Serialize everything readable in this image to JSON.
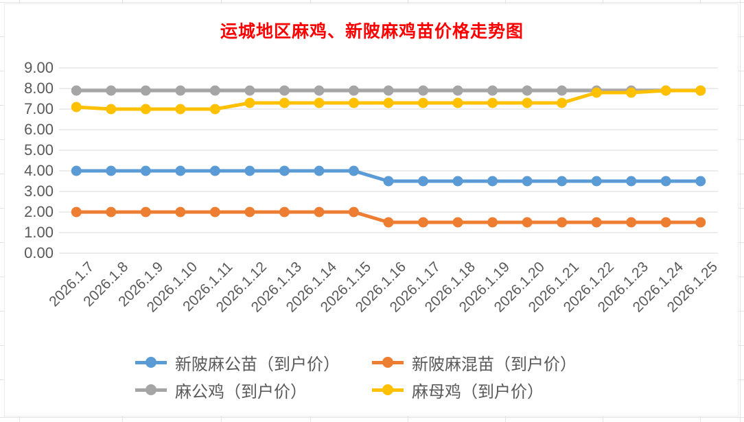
{
  "chart_data": {
    "type": "line",
    "title": "运城地区麻鸡、新陂麻鸡苗价格走势图",
    "title_color": "#ff0000",
    "xlabel": "",
    "ylabel": "",
    "ylim": [
      0,
      9
    ],
    "y_tick_step": 1,
    "y_tick_labels": [
      "0.00",
      "1.00",
      "2.00",
      "3.00",
      "4.00",
      "5.00",
      "6.00",
      "7.00",
      "8.00",
      "9.00"
    ],
    "grid": true,
    "legend_position": "bottom",
    "categories": [
      "2026.1.7",
      "2026.1.8",
      "2026.1.9",
      "2026.1.10",
      "2026.1.11",
      "2026.1.12",
      "2026.1.13",
      "2026.1.14",
      "2026.1.15",
      "2026.1.16",
      "2026.1.17",
      "2026.1.18",
      "2026.1.19",
      "2026.1.20",
      "2026.1.21",
      "2026.1.22",
      "2026.1.23",
      "2026.1.24",
      "2026.1.25"
    ],
    "series": [
      {
        "name": "新陂麻公苗（到户价）",
        "color": "#5B9BD5",
        "values": [
          4.0,
          4.0,
          4.0,
          4.0,
          4.0,
          4.0,
          4.0,
          4.0,
          4.0,
          3.5,
          3.5,
          3.5,
          3.5,
          3.5,
          3.5,
          3.5,
          3.5,
          3.5,
          3.5
        ]
      },
      {
        "name": "新陂麻混苗（到户价）",
        "color": "#ED7D31",
        "values": [
          2.0,
          2.0,
          2.0,
          2.0,
          2.0,
          2.0,
          2.0,
          2.0,
          2.0,
          1.5,
          1.5,
          1.5,
          1.5,
          1.5,
          1.5,
          1.5,
          1.5,
          1.5,
          1.5
        ]
      },
      {
        "name": "麻公鸡（到户价）",
        "color": "#A5A5A5",
        "values": [
          7.9,
          7.9,
          7.9,
          7.9,
          7.9,
          7.9,
          7.9,
          7.9,
          7.9,
          7.9,
          7.9,
          7.9,
          7.9,
          7.9,
          7.9,
          7.9,
          7.9,
          7.9,
          7.9
        ]
      },
      {
        "name": "麻母鸡（到户价）",
        "color": "#FFC000",
        "values": [
          7.1,
          7.0,
          7.0,
          7.0,
          7.0,
          7.3,
          7.3,
          7.3,
          7.3,
          7.3,
          7.3,
          7.3,
          7.3,
          7.3,
          7.3,
          7.8,
          7.8,
          7.9,
          7.9
        ]
      }
    ],
    "legend_rows": [
      [
        "新陂麻公苗（到户价）",
        "新陂麻混苗（到户价）"
      ],
      [
        "麻公鸡（到户价）",
        "麻母鸡（到户价）"
      ]
    ],
    "gridline_color": "#d9d9d9",
    "tick_label_color": "#595959"
  }
}
